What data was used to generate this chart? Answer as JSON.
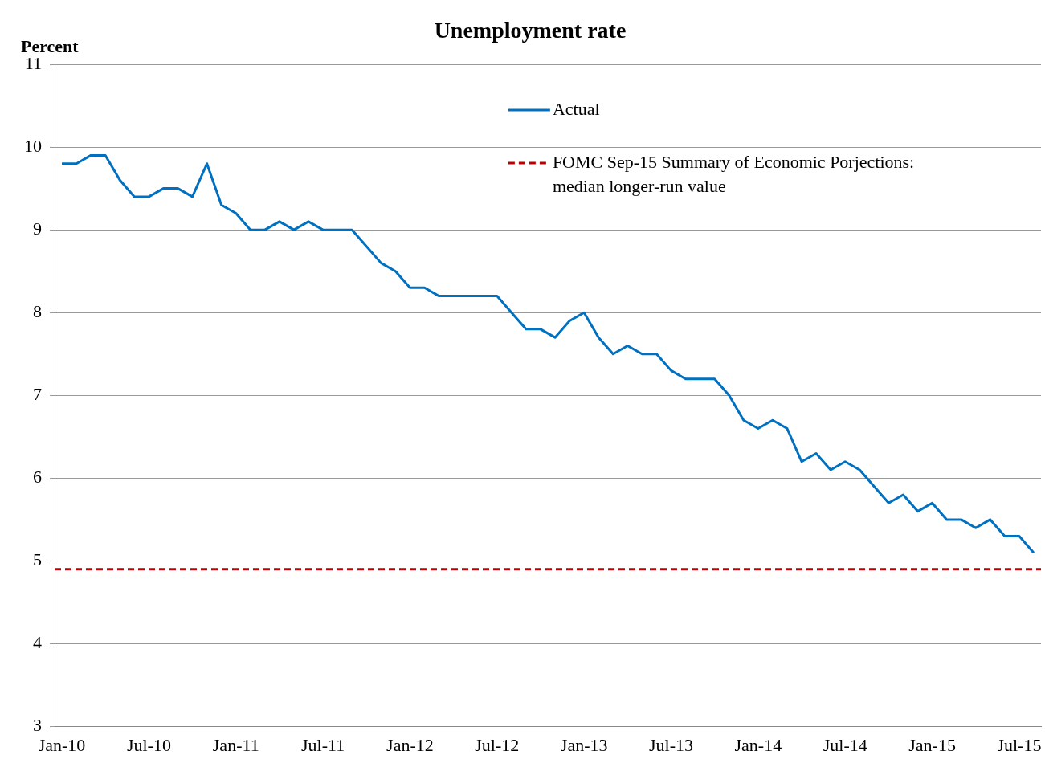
{
  "chart_data": {
    "type": "line",
    "title": "Unemployment rate",
    "ylabel": "Percent",
    "categories": [
      "Jan-10",
      null,
      null,
      null,
      null,
      null,
      "Jul-10",
      null,
      null,
      null,
      null,
      null,
      "Jan-11",
      null,
      null,
      null,
      null,
      null,
      "Jul-11",
      null,
      null,
      null,
      null,
      null,
      "Jan-12",
      null,
      null,
      null,
      null,
      null,
      "Jul-12",
      null,
      null,
      null,
      null,
      null,
      "Jan-13",
      null,
      null,
      null,
      null,
      null,
      "Jul-13",
      null,
      null,
      null,
      null,
      null,
      "Jan-14",
      null,
      null,
      null,
      null,
      null,
      "Jul-14",
      null,
      null,
      null,
      null,
      null,
      "Jan-15",
      null,
      null,
      null,
      null,
      null,
      "Jul-15",
      null
    ],
    "series": [
      {
        "name": "Actual",
        "color": "#0070c0",
        "values": [
          9.8,
          9.8,
          9.9,
          9.9,
          9.6,
          9.4,
          9.4,
          9.5,
          9.5,
          9.4,
          9.8,
          9.3,
          9.2,
          9.0,
          9.0,
          9.1,
          9.0,
          9.1,
          9.0,
          9.0,
          9.0,
          8.8,
          8.6,
          8.5,
          8.3,
          8.3,
          8.2,
          8.2,
          8.2,
          8.2,
          8.2,
          8.0,
          7.8,
          7.8,
          7.7,
          7.9,
          8.0,
          7.7,
          7.5,
          7.6,
          7.5,
          7.5,
          7.3,
          7.2,
          7.2,
          7.2,
          7.0,
          6.7,
          6.6,
          6.7,
          6.6,
          6.2,
          6.3,
          6.1,
          6.2,
          6.1,
          5.9,
          5.7,
          5.8,
          5.6,
          5.7,
          5.5,
          5.5,
          5.4,
          5.5,
          5.3,
          5.3,
          5.1
        ]
      }
    ],
    "ref_lines": [
      {
        "axis": "y",
        "value": 4.9,
        "label": "FOMC Sep-15 Summary of Economic Porjections: median longer-run value",
        "color": "#c00000",
        "line_style": "dashed"
      }
    ],
    "ylim": [
      3,
      11
    ],
    "yticks": [
      3,
      4,
      5,
      6,
      7,
      8,
      9,
      10,
      11
    ],
    "grid": "y",
    "legend": "top",
    "marker": "none",
    "line_style": "solid"
  }
}
